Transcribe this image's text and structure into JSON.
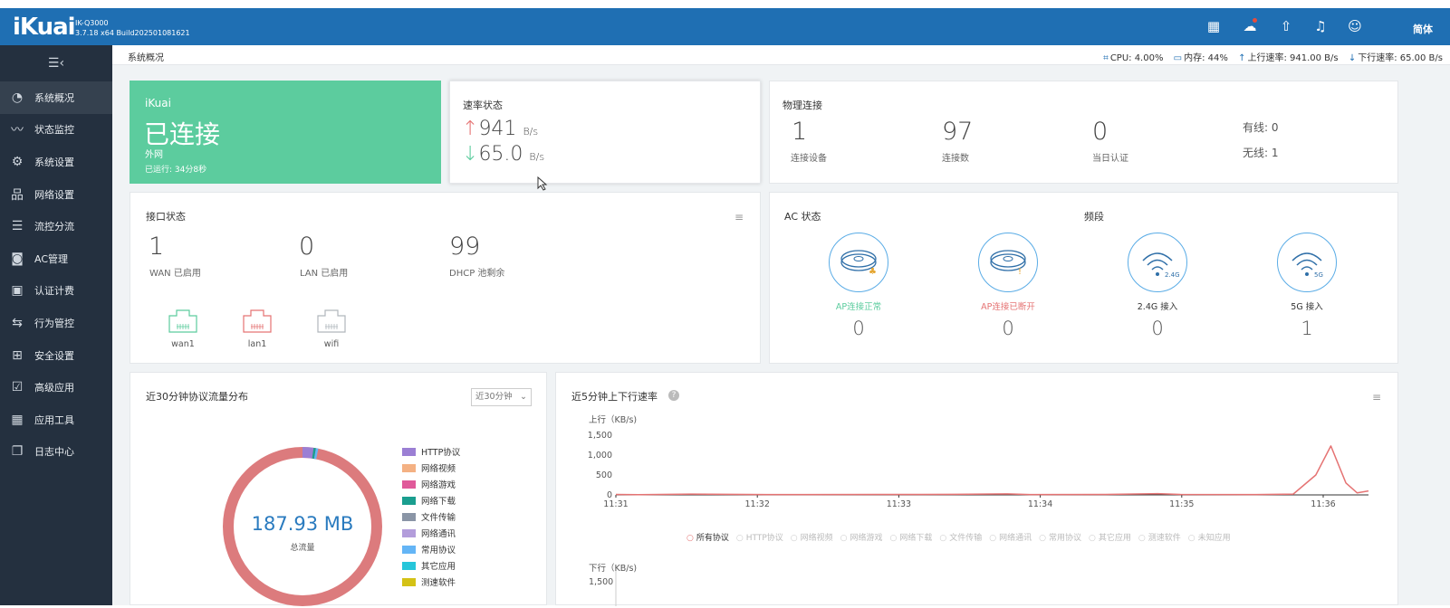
{
  "app": {
    "logo": "iKuai",
    "model": "IK-Q3000",
    "build": "3.7.18 x64 Build202501081621",
    "lang": "简体"
  },
  "header_icons": [
    "apps-icon",
    "cloud-icon",
    "upload-icon",
    "bell-icon",
    "user-icon"
  ],
  "sidebar": {
    "items": [
      {
        "label": "系统概况",
        "icon": "dashboard-icon",
        "glyph": "◔",
        "active": true
      },
      {
        "label": "状态监控",
        "icon": "monitor-icon",
        "glyph": "〰"
      },
      {
        "label": "系统设置",
        "icon": "gear-icon",
        "glyph": "⚙"
      },
      {
        "label": "网络设置",
        "icon": "network-icon",
        "glyph": "品"
      },
      {
        "label": "流控分流",
        "icon": "sliders-icon",
        "glyph": "☰"
      },
      {
        "label": "AC管理",
        "icon": "ac-icon",
        "glyph": "◙"
      },
      {
        "label": "认证计费",
        "icon": "auth-icon",
        "glyph": "▣"
      },
      {
        "label": "行为管控",
        "icon": "behavior-icon",
        "glyph": "⇆"
      },
      {
        "label": "安全设置",
        "icon": "firewall-icon",
        "glyph": "⊞"
      },
      {
        "label": "高级应用",
        "icon": "advanced-icon",
        "glyph": "☑"
      },
      {
        "label": "应用工具",
        "icon": "tools-icon",
        "glyph": "▦"
      },
      {
        "label": "日志中心",
        "icon": "log-icon",
        "glyph": "❐"
      }
    ]
  },
  "topbar": {
    "breadcrumb": "系统概况",
    "cpu": "CPU: 4.00%",
    "mem": "内存: 44%",
    "up": "上行速率: 941.00 B/s",
    "down": "下行速率: 65.00 B/s"
  },
  "wan": {
    "brand": "iKuai",
    "status": "已连接",
    "type": "外网",
    "uptime": "已运行: 34分8秒",
    "color": "#5ccc9e"
  },
  "speed": {
    "title": "速率状态",
    "up_value": "941",
    "down_value": "65.0",
    "unit": "B/s",
    "up_arrow": "↑",
    "down_arrow": "↓"
  },
  "physical": {
    "title": "物理连接",
    "stats": [
      {
        "value": "1",
        "label": "连接设备"
      },
      {
        "value": "97",
        "label": "连接数"
      },
      {
        "value": "0",
        "label": "当日认证"
      }
    ],
    "wired": "有线: 0",
    "wireless": "无线: 1"
  },
  "iface": {
    "title": "接口状态",
    "stats": [
      {
        "value": "1",
        "label": "WAN 已启用"
      },
      {
        "value": "0",
        "label": "LAN 已启用"
      },
      {
        "value": "99",
        "label": "DHCP 池剩余"
      }
    ],
    "ports": [
      {
        "label": "wan1",
        "color": "#5ccc9e"
      },
      {
        "label": "lan1",
        "color": "#e57373"
      },
      {
        "label": "wifi",
        "color": "#b0b6bc"
      }
    ]
  },
  "ac": {
    "title": "AC 状态",
    "band_title": "频段",
    "items": [
      {
        "label": "AP连接正常",
        "value": "0",
        "color": "#5ccc9e"
      },
      {
        "label": "AP连接已断开",
        "value": "0",
        "color": "#e57373"
      },
      {
        "label": "2.4G 接入",
        "value": "0",
        "color": "#333333",
        "tag": "2.4G"
      },
      {
        "label": "5G 接入",
        "value": "1",
        "color": "#333333",
        "tag": "5G"
      }
    ]
  },
  "proto": {
    "title": "近30分钟协议流量分布",
    "select": "近30分钟",
    "total": "187.93 MB",
    "total_label": "总流量",
    "legend": [
      {
        "name": "HTTP协议",
        "color": "#9b7fd4"
      },
      {
        "name": "网络视频",
        "color": "#f4b183"
      },
      {
        "name": "网络游戏",
        "color": "#e05a9a"
      },
      {
        "name": "网络下载",
        "color": "#1a9e8f"
      },
      {
        "name": "文件传输",
        "color": "#8a95a6"
      },
      {
        "name": "网络通讯",
        "color": "#b39ddb"
      },
      {
        "name": "常用协议",
        "color": "#64b5f6"
      },
      {
        "name": "其它应用",
        "color": "#26c6da"
      },
      {
        "name": "测速软件",
        "color": "#d4c216"
      }
    ],
    "ring_color": "#dc7b7d"
  },
  "chart_data": {
    "type": "line",
    "title": "近5分钟上下行速率",
    "ylabel": "上行（KB/s)",
    "ylim": [
      0,
      1500
    ],
    "yticks": [
      "1,500",
      "1,000",
      "500",
      "0"
    ],
    "x": [
      "11:31",
      "11:32",
      "11:33",
      "11:34",
      "11:35",
      "11:36"
    ],
    "series": [
      {
        "name": "所有协议",
        "color": "#e57373",
        "points": [
          [
            0,
            10
          ],
          [
            0.03,
            5
          ],
          [
            0.1,
            20
          ],
          [
            0.2,
            8
          ],
          [
            0.35,
            10
          ],
          [
            0.45,
            15
          ],
          [
            0.52,
            25
          ],
          [
            0.55,
            8
          ],
          [
            0.65,
            10
          ],
          [
            0.72,
            30
          ],
          [
            0.75,
            12
          ],
          [
            0.85,
            8
          ],
          [
            0.9,
            20
          ],
          [
            0.93,
            500
          ],
          [
            0.95,
            1230
          ],
          [
            0.97,
            300
          ],
          [
            0.985,
            50
          ],
          [
            1,
            100
          ]
        ]
      }
    ],
    "legend": [
      "所有协议",
      "HTTP协议",
      "网络视频",
      "网络游戏",
      "网络下载",
      "文件传输",
      "网络通讯",
      "常用协议",
      "其它应用",
      "测速软件",
      "未知应用"
    ],
    "down_label": "下行（KB/s)",
    "down_top": "1,500"
  }
}
